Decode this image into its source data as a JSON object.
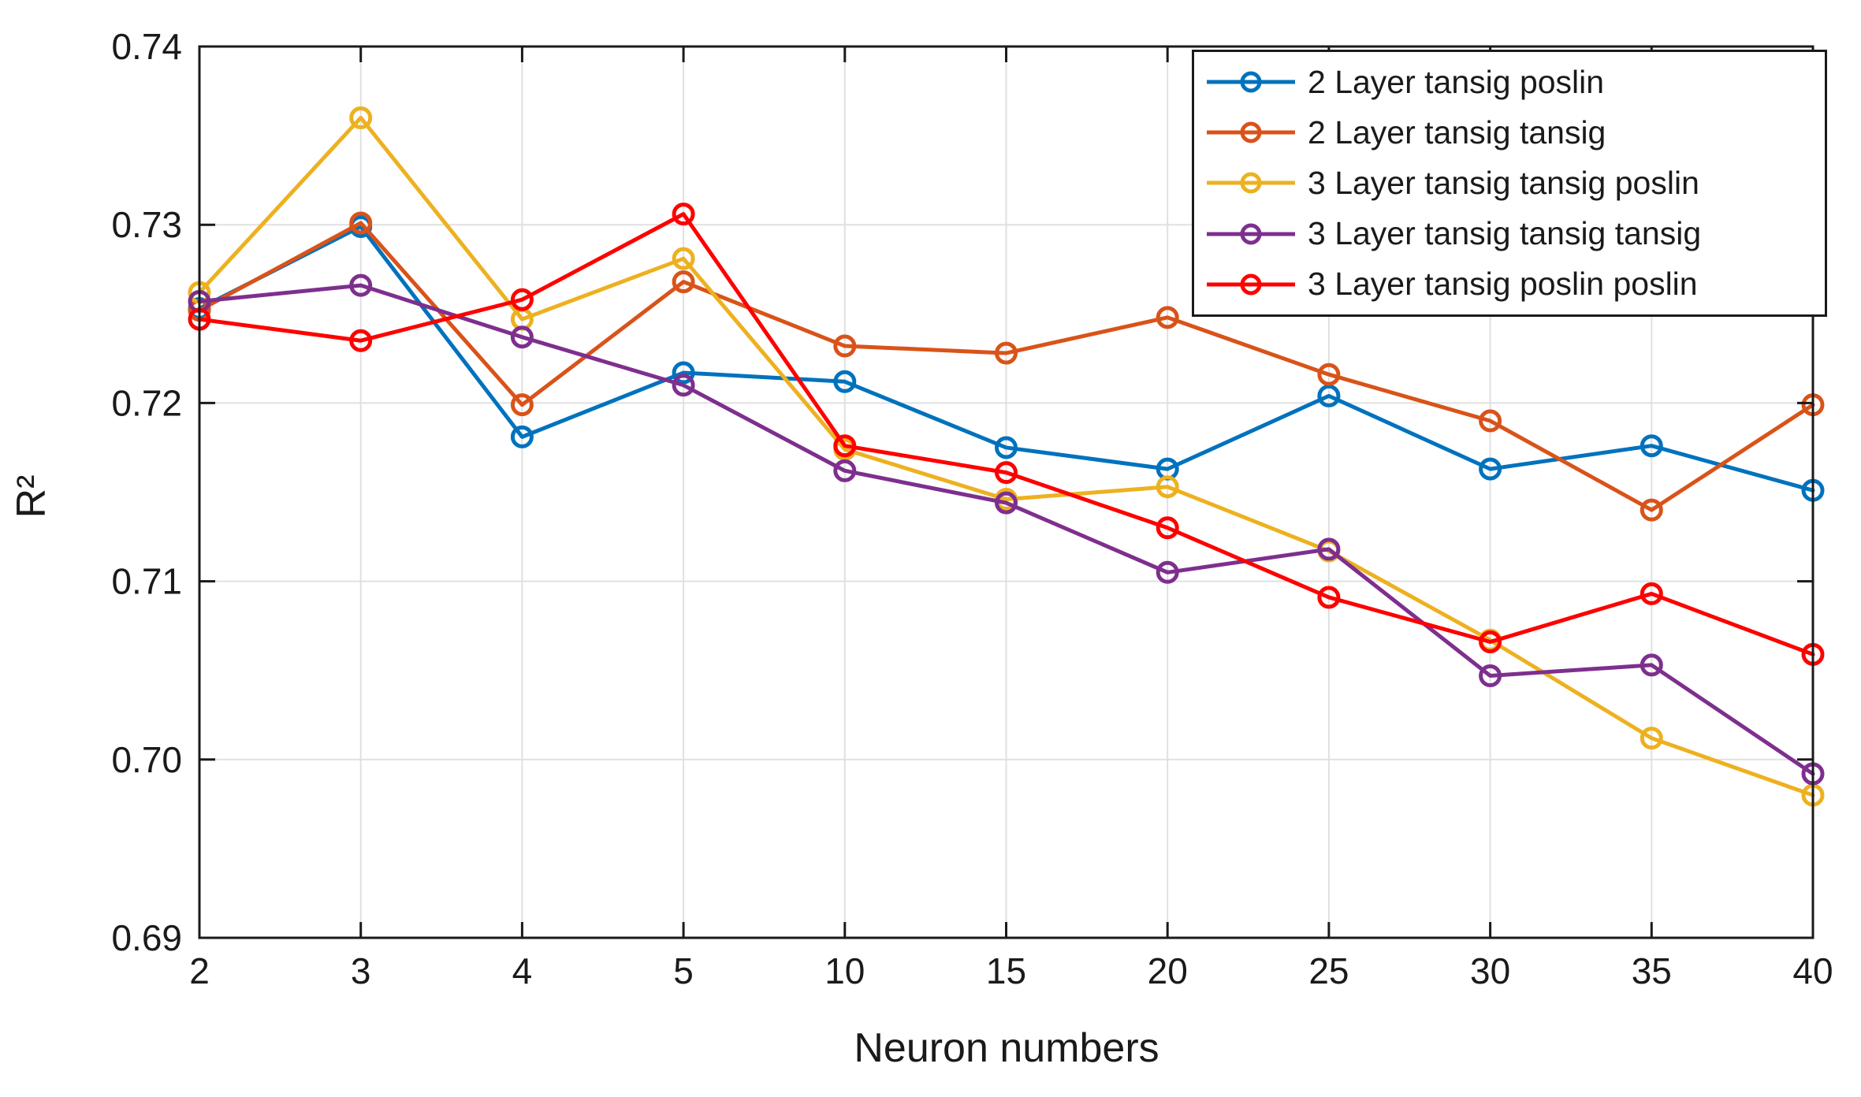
{
  "chart_data": {
    "type": "line",
    "title": "",
    "xlabel": "Neuron numbers",
    "ylabel": "R²",
    "x": [
      2,
      3,
      4,
      5,
      10,
      15,
      20,
      25,
      30,
      35,
      40
    ],
    "x_tick_labels": [
      "2",
      "3",
      "4",
      "5",
      "10",
      "15",
      "20",
      "25",
      "30",
      "35",
      "40"
    ],
    "x_spacing": "even-categorical",
    "ylim": [
      0.69,
      0.74
    ],
    "y_ticks": [
      0.69,
      0.7,
      0.71,
      0.72,
      0.73,
      0.74
    ],
    "y_tick_labels": [
      "0.69",
      "0.70",
      "0.71",
      "0.72",
      "0.73",
      "0.74"
    ],
    "grid": true,
    "legend_position": "top-right",
    "marker": "open-circle",
    "series": [
      {
        "name": "2 Layer tansig poslin",
        "color": "#0072BD",
        "values": [
          0.7253,
          0.7299,
          0.7181,
          0.7217,
          0.7212,
          0.7175,
          0.7163,
          0.7204,
          0.7163,
          0.7176,
          0.7151
        ]
      },
      {
        "name": "2 Layer tansig tansig",
        "color": "#D95319",
        "values": [
          0.7252,
          0.7301,
          0.7199,
          0.7268,
          0.7232,
          0.7228,
          0.7248,
          0.7216,
          0.719,
          0.714,
          0.7199
        ]
      },
      {
        "name": "3 Layer tansig tansig poslin",
        "color": "#EDB120",
        "values": [
          0.7262,
          0.736,
          0.7247,
          0.7281,
          0.7174,
          0.7146,
          0.7153,
          0.7117,
          0.7067,
          0.7012,
          0.698
        ]
      },
      {
        "name": "3 Layer tansig tansig tansig",
        "color": "#7E2F8E",
        "values": [
          0.7257,
          0.7266,
          0.7237,
          0.721,
          0.7162,
          0.7144,
          0.7105,
          0.7118,
          0.7047,
          0.7053,
          0.6992
        ]
      },
      {
        "name": "3 Layer tansig poslin poslin",
        "color": "#FF0000",
        "values": [
          0.7247,
          0.7235,
          0.7258,
          0.7306,
          0.7176,
          0.7161,
          0.713,
          0.7091,
          0.7066,
          0.7093,
          0.7059
        ]
      }
    ]
  },
  "style_colors": {
    "axis": "#1a1a1a",
    "grid": "#e0e0e0",
    "background": "#ffffff"
  }
}
